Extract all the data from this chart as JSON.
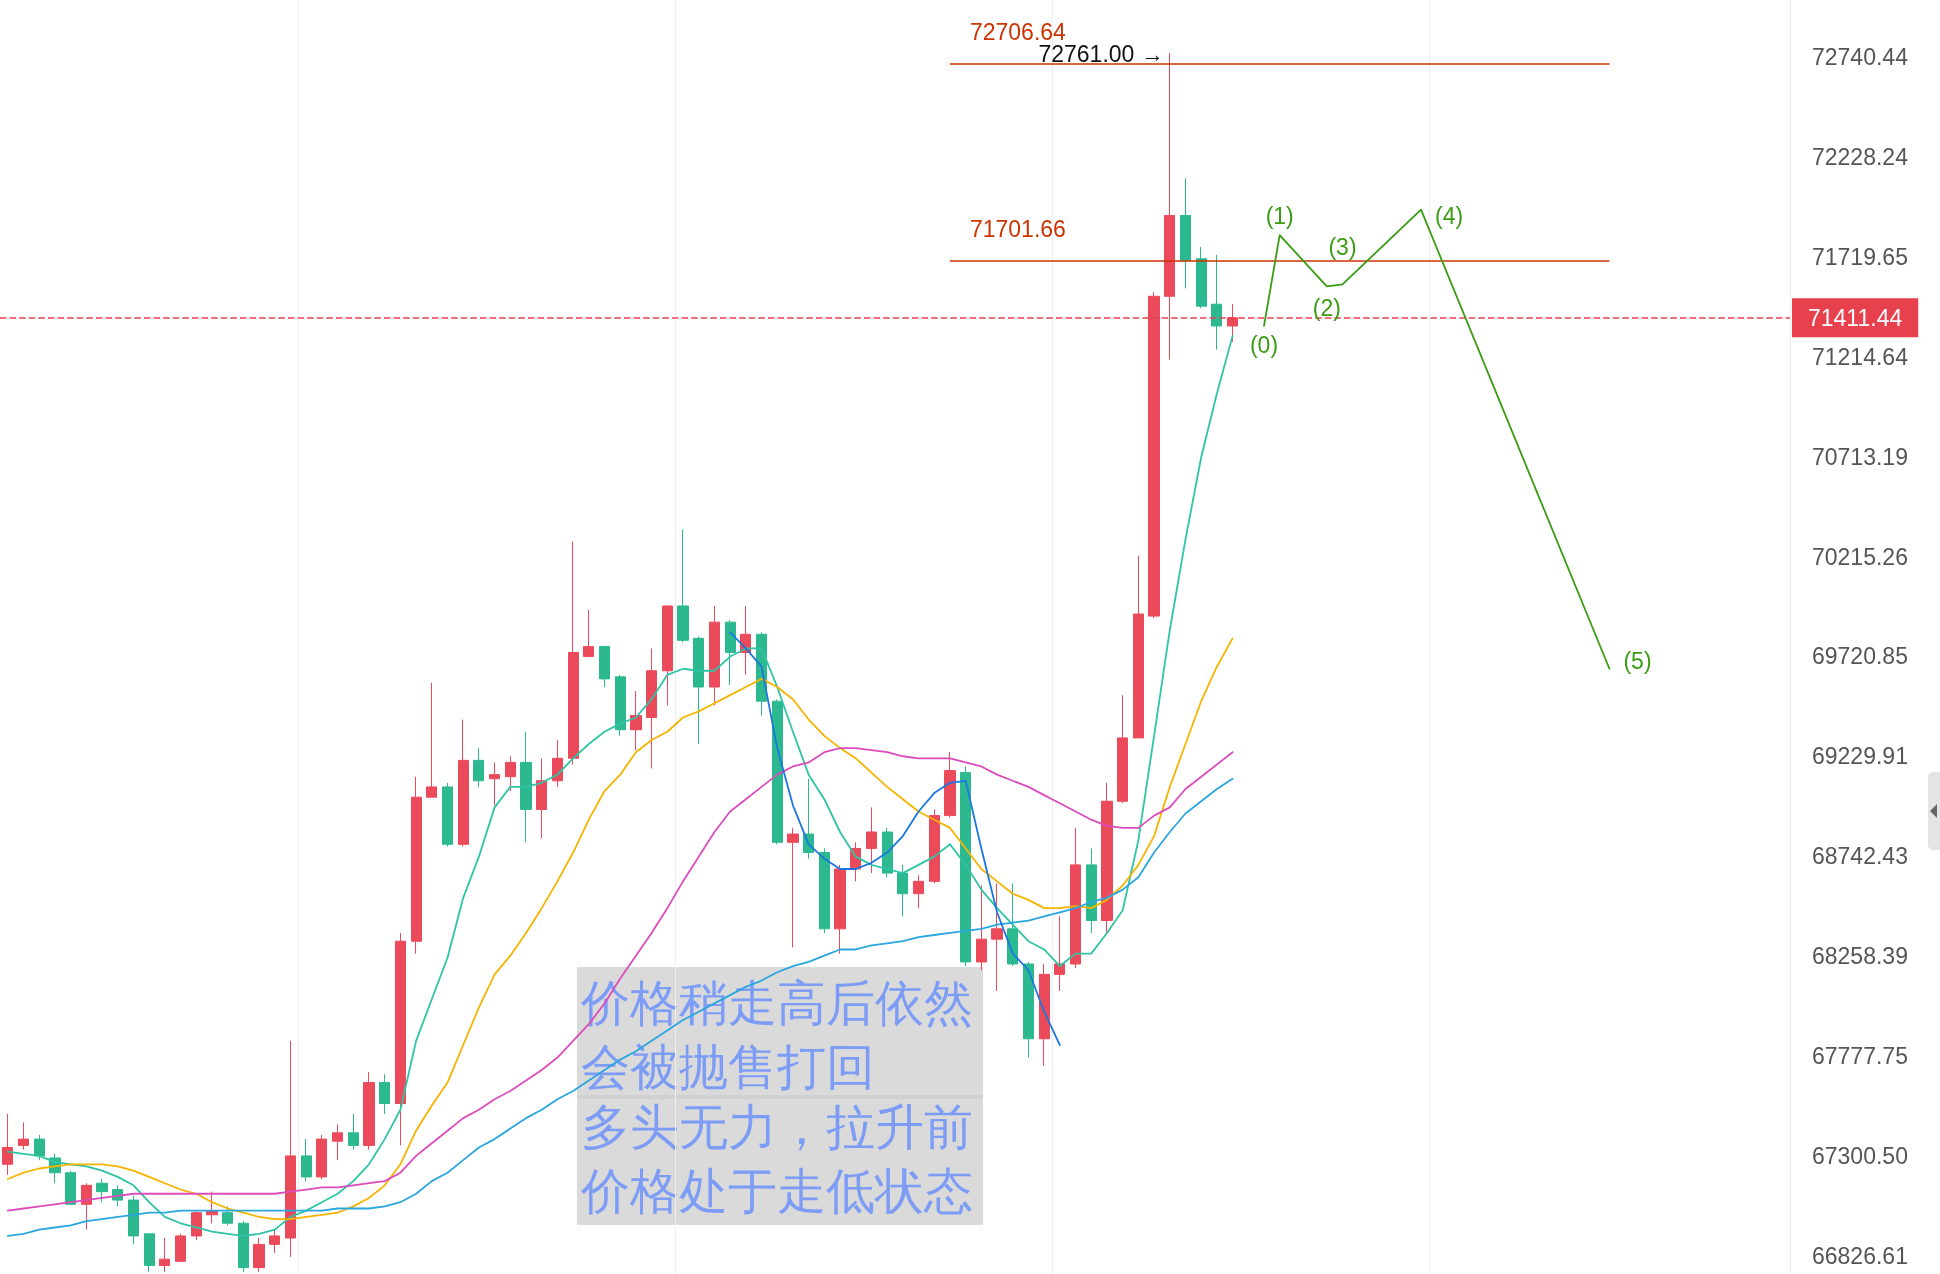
{
  "chart_data": {
    "type": "candlestick",
    "categories": [
      null,
      null,
      null,
      null,
      null,
      null,
      null,
      null,
      null,
      null,
      null,
      null,
      null,
      null,
      null,
      null,
      null,
      null,
      null,
      null,
      null,
      null,
      null,
      null,
      null,
      null,
      null,
      null,
      null,
      null,
      null,
      null,
      null,
      null,
      null,
      null,
      null,
      null,
      null,
      null,
      null,
      null,
      null,
      null,
      null,
      null,
      null,
      null,
      null,
      null,
      null,
      null,
      null,
      null,
      null,
      null,
      null,
      null,
      null,
      null,
      null,
      null,
      null,
      null,
      null,
      null,
      null,
      null,
      null,
      null,
      null,
      null,
      null,
      null,
      null,
      null,
      null,
      null,
      null,
      null,
      null,
      null,
      null,
      null,
      null,
      null,
      null,
      null,
      null,
      null,
      null,
      null,
      null,
      null,
      null,
      null,
      null,
      null,
      null,
      null,
      null,
      null,
      null,
      null,
      null,
      null,
      null,
      null,
      null,
      null,
      null,
      null,
      null,
      null
    ],
    "ohlc": [
      [
        67260,
        67500,
        67210,
        67340
      ],
      [
        67350,
        67460,
        67330,
        67380
      ],
      [
        67380,
        67400,
        67280,
        67300
      ],
      [
        67290,
        67310,
        67170,
        67220
      ],
      [
        67220,
        67230,
        67070,
        67070
      ],
      [
        67070,
        67170,
        66950,
        67160
      ],
      [
        67170,
        67190,
        67080,
        67130
      ],
      [
        67140,
        67160,
        67060,
        67090
      ],
      [
        67090,
        67110,
        66880,
        66920
      ],
      [
        66930,
        66930,
        66750,
        66780
      ],
      [
        66780,
        66910,
        66750,
        66810
      ],
      [
        66800,
        66930,
        66800,
        66920
      ],
      [
        66920,
        67040,
        66900,
        67030
      ],
      [
        67020,
        67130,
        66980,
        67040
      ],
      [
        67030,
        67060,
        66970,
        66980
      ],
      [
        66980,
        66990,
        66750,
        66770
      ],
      [
        66770,
        66910,
        66750,
        66880
      ],
      [
        66880,
        66950,
        66840,
        66920
      ],
      [
        66910,
        67850,
        66820,
        67300
      ],
      [
        67300,
        67380,
        67180,
        67200
      ],
      [
        67200,
        67400,
        67190,
        67380
      ],
      [
        67370,
        67450,
        67280,
        67410
      ],
      [
        67410,
        67500,
        67330,
        67350
      ],
      [
        67350,
        67700,
        67330,
        67650
      ],
      [
        67650,
        67690,
        67500,
        67550
      ],
      [
        67550,
        68370,
        67350,
        68330
      ],
      [
        68330,
        69130,
        68270,
        69030
      ],
      [
        69030,
        69590,
        69030,
        69080
      ],
      [
        69080,
        69100,
        68790,
        68800
      ],
      [
        68800,
        69410,
        68790,
        69210
      ],
      [
        69210,
        69270,
        69080,
        69110
      ],
      [
        69120,
        69200,
        68990,
        69140
      ],
      [
        69130,
        69230,
        69060,
        69200
      ],
      [
        69200,
        69350,
        68810,
        68970
      ],
      [
        68970,
        69220,
        68830,
        69110
      ],
      [
        69110,
        69310,
        69080,
        69220
      ],
      [
        69220,
        70290,
        69190,
        69740
      ],
      [
        69720,
        69950,
        69720,
        69770
      ],
      [
        69770,
        69770,
        69570,
        69610
      ],
      [
        69620,
        69630,
        69330,
        69360
      ],
      [
        69360,
        69550,
        69260,
        69430
      ],
      [
        69420,
        69760,
        69170,
        69650
      ],
      [
        69650,
        69970,
        69480,
        69970
      ],
      [
        69970,
        70350,
        69790,
        69800
      ],
      [
        69810,
        69820,
        69290,
        69570
      ],
      [
        69570,
        69970,
        69480,
        69890
      ],
      [
        69890,
        69900,
        69580,
        69740
      ],
      [
        69740,
        69970,
        69630,
        69830
      ],
      [
        69830,
        69840,
        69430,
        69500
      ],
      [
        69500,
        69510,
        68800,
        68810
      ],
      [
        68810,
        68880,
        68300,
        68850
      ],
      [
        68850,
        69120,
        68730,
        68760
      ],
      [
        68760,
        68780,
        68370,
        68390
      ],
      [
        68390,
        68700,
        68270,
        68680
      ],
      [
        68680,
        68810,
        68620,
        68780
      ],
      [
        68780,
        68980,
        68660,
        68860
      ],
      [
        68860,
        68880,
        68640,
        68660
      ],
      [
        68660,
        68700,
        68450,
        68560
      ],
      [
        68560,
        68650,
        68490,
        68620
      ],
      [
        68620,
        68970,
        68610,
        68940
      ],
      [
        68940,
        69250,
        68930,
        69160
      ],
      [
        69150,
        69180,
        68210,
        68230
      ],
      [
        68230,
        68600,
        68190,
        68340
      ],
      [
        68340,
        68610,
        68090,
        68390
      ],
      [
        68390,
        68610,
        68210,
        68220
      ],
      [
        68220,
        68230,
        67770,
        67860
      ],
      [
        67860,
        68220,
        67730,
        68170
      ],
      [
        68170,
        68450,
        68090,
        68220
      ],
      [
        68220,
        68880,
        68200,
        68700
      ],
      [
        68700,
        68780,
        68370,
        68430
      ],
      [
        68430,
        69100,
        68370,
        69010
      ],
      [
        69010,
        69530,
        69000,
        69320
      ],
      [
        69320,
        70220,
        69320,
        69930
      ],
      [
        69920,
        71540,
        69910,
        71520
      ],
      [
        71520,
        72761,
        71200,
        71930
      ],
      [
        71930,
        72120,
        71560,
        71700
      ],
      [
        71710,
        71770,
        71460,
        71470
      ],
      [
        71480,
        71730,
        71250,
        71370
      ],
      [
        71370,
        71480,
        71290,
        71411.44
      ],
      null,
      null,
      null,
      null,
      null,
      null,
      null,
      null,
      null,
      null,
      null,
      null,
      null,
      null,
      null,
      null,
      null,
      null,
      null,
      null,
      null,
      null,
      null,
      null,
      null,
      null,
      null,
      null,
      null,
      null,
      null,
      null,
      null,
      null,
      null
    ],
    "colors": [
      "#eb4a5a",
      "#eb4a5a",
      "#2cb98f",
      "#2cb98f",
      "#2cb98f",
      "#eb4a5a",
      "#2cb98f",
      "#2cb98f",
      "#2cb98f",
      "#2cb98f",
      "#eb4a5a",
      "#eb4a5a",
      "#eb4a5a",
      "#eb4a5a",
      "#2cb98f",
      "#2cb98f",
      "#eb4a5a",
      "#eb4a5a",
      "#eb4a5a",
      "#2cb98f",
      "#eb4a5a",
      "#eb4a5a",
      "#2cb98f",
      "#eb4a5a",
      "#2cb98f",
      "#eb4a5a",
      "#eb4a5a",
      "#eb4a5a",
      "#2cb98f",
      "#eb4a5a",
      "#2cb98f",
      "#eb4a5a",
      "#eb4a5a",
      "#2cb98f",
      "#eb4a5a",
      "#eb4a5a",
      "#eb4a5a",
      "#eb4a5a",
      "#2cb98f",
      "#2cb98f",
      "#eb4a5a",
      "#eb4a5a",
      "#eb4a5a",
      "#2cb98f",
      "#2cb98f",
      "#eb4a5a",
      "#2cb98f",
      "#eb4a5a",
      "#2cb98f",
      "#2cb98f",
      "#eb4a5a",
      "#2cb98f",
      "#2cb98f",
      "#eb4a5a",
      "#eb4a5a",
      "#eb4a5a",
      "#2cb98f",
      "#2cb98f",
      "#eb4a5a",
      "#eb4a5a",
      "#eb4a5a",
      "#2cb98f",
      "#eb4a5a",
      "#eb4a5a",
      "#2cb98f",
      "#2cb98f",
      "#eb4a5a",
      "#eb4a5a",
      "#eb4a5a",
      "#2cb98f",
      "#eb4a5a",
      "#eb4a5a",
      "#eb4a5a",
      "#eb4a5a",
      "#eb4a5a",
      "#2cb98f",
      "#2cb98f",
      "#2cb98f",
      "#eb4a5a",
      null,
      null,
      null,
      null,
      null,
      null,
      null,
      null,
      null,
      null,
      null,
      null,
      null,
      null,
      null,
      null,
      null,
      null,
      null,
      null,
      null,
      null,
      null,
      null,
      null,
      null,
      null,
      null,
      null,
      null,
      null,
      null,
      null,
      null,
      null
    ],
    "series": [
      {
        "type": "line",
        "color": "#2ec4a5",
        "values": [
          67320,
          67310,
          67300,
          67270,
          67260,
          67250,
          67230,
          67200,
          67160,
          67080,
          67010,
          66980,
          66960,
          66940,
          66930,
          66920,
          66930,
          66950,
          67010,
          67040,
          67080,
          67120,
          67180,
          67260,
          67380,
          67520,
          67850,
          68050,
          68250,
          68540,
          68740,
          68980,
          69080,
          69080,
          69100,
          69140,
          69220,
          69290,
          69350,
          69390,
          69420,
          69510,
          69630,
          69660,
          69650,
          69650,
          69720,
          69760,
          69760,
          69570,
          69350,
          69140,
          69020,
          68860,
          68740,
          68700,
          68680,
          68660,
          68700,
          68740,
          68800,
          68700,
          68580,
          68490,
          68410,
          68330,
          68290,
          68210,
          68270,
          68270,
          68370,
          68480,
          68820,
          69330,
          69850,
          70300,
          70710,
          71030,
          71320,
          null,
          null,
          null,
          null,
          null,
          null,
          null,
          null,
          null,
          null,
          null,
          null,
          null,
          null,
          null,
          null,
          null,
          null,
          null,
          null,
          null,
          null,
          null,
          null,
          null,
          null,
          null,
          null,
          null,
          null,
          null,
          null,
          null,
          null,
          null
        ]
      },
      {
        "type": "line",
        "color": "#f5b400",
        "values": [
          67190,
          67220,
          67240,
          67250,
          67260,
          67260,
          67260,
          67250,
          67230,
          67200,
          67170,
          67140,
          67120,
          67080,
          67050,
          67030,
          67010,
          67000,
          67000,
          67010,
          67020,
          67030,
          67060,
          67100,
          67160,
          67260,
          67420,
          67540,
          67650,
          67830,
          68010,
          68170,
          68260,
          68370,
          68490,
          68620,
          68760,
          68920,
          69060,
          69140,
          69250,
          69310,
          69350,
          69420,
          69450,
          69490,
          69530,
          69570,
          69610,
          69570,
          69510,
          69410,
          69330,
          69270,
          69220,
          69150,
          69080,
          69020,
          68960,
          68920,
          68880,
          68780,
          68680,
          68620,
          68560,
          68530,
          68490,
          68490,
          68500,
          68490,
          68530,
          68600,
          68700,
          68840,
          69080,
          69290,
          69500,
          69670,
          69810,
          null,
          null,
          null,
          null,
          null,
          null,
          null,
          null,
          null,
          null,
          null,
          null,
          null,
          null,
          null,
          null,
          null,
          null,
          null,
          null,
          null,
          null,
          null,
          null,
          null,
          null,
          null,
          null,
          null,
          null,
          null,
          null,
          null,
          null,
          null
        ]
      },
      {
        "type": "line",
        "color": "#dc4cbc",
        "values": [
          67040,
          67050,
          67060,
          67070,
          67080,
          67090,
          67100,
          67110,
          67120,
          67120,
          67120,
          67120,
          67120,
          67120,
          67120,
          67120,
          67120,
          67120,
          67130,
          67140,
          67150,
          67150,
          67160,
          67170,
          67180,
          67220,
          67300,
          67360,
          67420,
          67480,
          67520,
          67570,
          67610,
          67660,
          67710,
          67770,
          67850,
          67930,
          68030,
          68150,
          68260,
          68370,
          68490,
          68620,
          68740,
          68860,
          68960,
          69020,
          69080,
          69140,
          69180,
          69200,
          69250,
          69270,
          69270,
          69260,
          69250,
          69230,
          69220,
          69220,
          69220,
          69200,
          69180,
          69140,
          69110,
          69080,
          69040,
          69000,
          68960,
          68920,
          68890,
          68880,
          68880,
          68940,
          68980,
          69070,
          69130,
          69190,
          69250,
          null,
          null,
          null,
          null,
          null,
          null,
          null,
          null,
          null,
          null,
          null,
          null,
          null,
          null,
          null,
          null,
          null,
          null,
          null,
          null,
          null,
          null,
          null,
          null,
          null,
          null,
          null,
          null,
          null,
          null,
          null,
          null,
          null,
          null,
          null
        ]
      },
      {
        "type": "line",
        "color": "#2aa6df",
        "values": [
          66920,
          66930,
          66950,
          66960,
          66970,
          66990,
          67000,
          67010,
          67020,
          67030,
          67030,
          67040,
          67040,
          67040,
          67040,
          67040,
          67040,
          67040,
          67040,
          67040,
          67040,
          67050,
          67050,
          67050,
          67060,
          67080,
          67120,
          67180,
          67220,
          67280,
          67340,
          67380,
          67430,
          67480,
          67520,
          67570,
          67610,
          67660,
          67710,
          67760,
          67800,
          67850,
          67900,
          67950,
          67990,
          68030,
          68070,
          68110,
          68140,
          68180,
          68210,
          68230,
          68260,
          68290,
          68290,
          68310,
          68320,
          68330,
          68350,
          68360,
          68370,
          68380,
          68390,
          68410,
          68420,
          68430,
          68450,
          68470,
          68490,
          68520,
          68540,
          68580,
          68640,
          68760,
          68860,
          68950,
          69010,
          69070,
          69120,
          null,
          null,
          null,
          null,
          null,
          null,
          null,
          null,
          null,
          null,
          null,
          null,
          null,
          null,
          null,
          null,
          null,
          null,
          null,
          null,
          null,
          null,
          null,
          null,
          null,
          null,
          null,
          null,
          null,
          null,
          null,
          null,
          null,
          null,
          null
        ]
      },
      {
        "type": "line",
        "color": "#1c77e0",
        "values": [
          null,
          null,
          null,
          null,
          null,
          null,
          null,
          null,
          null,
          null,
          null,
          null,
          null,
          null,
          null,
          null,
          null,
          null,
          null,
          null,
          null,
          null,
          null,
          null,
          null,
          null,
          null,
          null,
          null,
          null,
          null,
          null,
          null,
          null,
          null,
          null,
          null,
          null,
          null,
          null,
          null,
          null,
          null,
          null,
          null,
          null,
          69840,
          69760,
          69670,
          69270,
          68990,
          68800,
          68730,
          68680,
          68680,
          68710,
          68760,
          68840,
          68960,
          69050,
          69100,
          69110,
          68780,
          68470,
          68270,
          68190,
          67990,
          67830,
          null,
          null,
          null,
          null,
          null,
          null,
          null,
          null,
          null,
          null,
          null,
          null,
          null,
          null,
          null,
          null,
          null,
          null,
          null,
          null,
          null,
          null,
          null,
          null,
          null,
          null,
          null,
          null,
          null,
          null,
          null,
          null,
          null,
          null,
          null,
          null,
          null,
          null,
          null,
          null,
          null,
          null,
          null,
          null,
          null,
          null
        ]
      },
      {
        "type": "line",
        "color": "#3a9c12",
        "values": [
          null,
          null,
          null,
          null,
          null,
          null,
          null,
          null,
          null,
          null,
          null,
          null,
          null,
          null,
          null,
          null,
          null,
          null,
          null,
          null,
          null,
          null,
          null,
          null,
          null,
          null,
          null,
          null,
          null,
          null,
          null,
          null,
          null,
          null,
          null,
          null,
          null,
          null,
          null,
          null,
          null,
          null,
          null,
          null,
          null,
          null,
          null,
          null,
          null,
          null,
          null,
          null,
          null,
          null,
          null,
          null,
          null,
          null,
          null,
          null,
          null,
          null,
          null,
          null,
          null,
          null,
          null,
          null,
          null,
          null,
          null,
          null,
          null,
          null,
          null,
          null,
          null,
          null,
          null,
          null,
          71370,
          71830,
          null,
          null,
          71570,
          71580,
          null,
          null,
          null,
          null,
          71960,
          null,
          null,
          null,
          null,
          null,
          null,
          null,
          null,
          null,
          null,
          null,
          69660,
          null,
          null,
          null,
          null,
          null,
          null,
          null,
          null,
          null,
          null,
          null
        ]
      }
    ],
    "ylim": [
      66740,
      73035
    ],
    "yticks": [
      66826.61,
      {
        "value": 67300.5,
        "label": "67300.50"
      },
      67777.75,
      68258.39,
      68742.43,
      69229.91,
      69720.85,
      70215.26,
      70713.19,
      71214.64,
      71719.65,
      72228.24,
      72740.44
    ],
    "log": true,
    "grid": "x",
    "tick_labels": "y",
    "ref_lines": [
      {
        "axis": "y",
        "value": 72706.64,
        "label": "72706.64",
        "color": "#cc3300"
      },
      {
        "axis": "y",
        "value": 71701.66,
        "label": "71701.66",
        "color": "#cc3300"
      },
      {
        "axis": "y",
        "value": 71411.44,
        "label": "71411.44",
        "color": "#e8414e",
        "line_style": "dashed"
      }
    ],
    "annotations": [
      "72761.00 →",
      "(0)",
      "(1)",
      "(2)",
      "(3)",
      "(4)",
      "(5)",
      "价格稍走高后依然会被抛售打回",
      "多头无力，拉升前价格处于走低状态"
    ]
  }
}
